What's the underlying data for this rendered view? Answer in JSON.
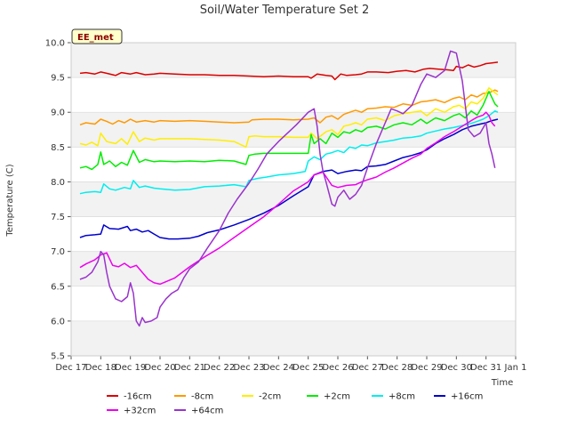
{
  "chart_data": {
    "type": "line",
    "title": "Soil/Water Temperature Set 2",
    "xlabel": "Time",
    "ylabel": "Temperature (C)",
    "badge": "EE_met",
    "x_ticks": [
      "Dec 17",
      "Dec 18",
      "Dec 19",
      "Dec 20",
      "Dec 21",
      "Dec 22",
      "Dec 23",
      "Dec 24",
      "Dec 25",
      "Dec 26",
      "Dec 27",
      "Dec 28",
      "Dec 29",
      "Dec 30",
      "Dec 31",
      "Jan 1"
    ],
    "xlim": [
      0,
      15
    ],
    "ylim": [
      5.5,
      10.0
    ],
    "y_ticks": [
      "5.5",
      "6.0",
      "6.5",
      "7.0",
      "7.5",
      "8.0",
      "8.5",
      "9.0",
      "9.5",
      "10.0"
    ],
    "y_tick_values": [
      5.5,
      6.0,
      6.5,
      7.0,
      7.5,
      8.0,
      8.5,
      9.0,
      9.5,
      10.0
    ],
    "band_color": "#f2f2f2",
    "legend_position": "bottom",
    "series": [
      {
        "name": "-16cm",
        "color": "#dd0000",
        "x": [
          0.3,
          0.5,
          0.8,
          1.0,
          1.2,
          1.5,
          1.7,
          2.0,
          2.2,
          2.5,
          2.8,
          3.0,
          3.5,
          4.0,
          4.5,
          5.0,
          5.5,
          6.0,
          6.5,
          7.0,
          7.5,
          8.0,
          8.1,
          8.3,
          8.6,
          8.8,
          8.9,
          9.1,
          9.3,
          9.6,
          9.8,
          10.0,
          10.3,
          10.7,
          11.0,
          11.3,
          11.6,
          11.9,
          12.1,
          12.4,
          12.7,
          12.9,
          13.0,
          13.2,
          13.4,
          13.6,
          13.8,
          14.0,
          14.2,
          14.4
        ],
        "y": [
          9.56,
          9.57,
          9.55,
          9.58,
          9.56,
          9.53,
          9.57,
          9.55,
          9.57,
          9.54,
          9.55,
          9.56,
          9.55,
          9.54,
          9.54,
          9.53,
          9.53,
          9.52,
          9.51,
          9.52,
          9.51,
          9.51,
          9.49,
          9.55,
          9.53,
          9.52,
          9.47,
          9.55,
          9.53,
          9.54,
          9.55,
          9.58,
          9.58,
          9.57,
          9.59,
          9.6,
          9.58,
          9.62,
          9.63,
          9.62,
          9.61,
          9.6,
          9.66,
          9.64,
          9.68,
          9.65,
          9.67,
          9.7,
          9.71,
          9.72
        ]
      },
      {
        "name": "-8cm",
        "color": "#ff9900",
        "x": [
          0.3,
          0.5,
          0.8,
          1.0,
          1.2,
          1.4,
          1.6,
          1.8,
          2.0,
          2.2,
          2.5,
          2.8,
          3.0,
          3.5,
          4.0,
          4.5,
          5.0,
          5.5,
          6.0,
          6.1,
          6.5,
          7.0,
          7.5,
          8.0,
          8.2,
          8.4,
          8.6,
          8.8,
          9.0,
          9.2,
          9.4,
          9.6,
          9.8,
          10.0,
          10.3,
          10.6,
          10.9,
          11.2,
          11.5,
          11.8,
          12.0,
          12.3,
          12.6,
          12.9,
          13.1,
          13.3,
          13.5,
          13.7,
          13.9,
          14.1,
          14.3,
          14.4
        ],
        "y": [
          8.82,
          8.85,
          8.83,
          8.9,
          8.87,
          8.83,
          8.88,
          8.85,
          8.9,
          8.86,
          8.88,
          8.86,
          8.88,
          8.87,
          8.88,
          8.87,
          8.86,
          8.85,
          8.86,
          8.89,
          8.9,
          8.9,
          8.89,
          8.9,
          8.92,
          8.85,
          8.93,
          8.95,
          8.9,
          8.97,
          9.0,
          9.03,
          9.0,
          9.05,
          9.06,
          9.08,
          9.07,
          9.12,
          9.1,
          9.15,
          9.16,
          9.18,
          9.14,
          9.2,
          9.22,
          9.18,
          9.25,
          9.22,
          9.27,
          9.28,
          9.32,
          9.3
        ]
      },
      {
        "name": "-2cm",
        "color": "#ffee00",
        "x": [
          0.3,
          0.5,
          0.7,
          0.9,
          1.0,
          1.2,
          1.5,
          1.7,
          1.9,
          2.1,
          2.3,
          2.5,
          2.8,
          3.0,
          3.5,
          4.0,
          4.5,
          5.0,
          5.5,
          5.9,
          6.0,
          6.2,
          6.5,
          7.0,
          7.5,
          8.0,
          8.1,
          8.3,
          8.6,
          8.8,
          9.0,
          9.2,
          9.4,
          9.6,
          9.8,
          10.0,
          10.3,
          10.6,
          10.9,
          11.2,
          11.5,
          11.8,
          12.0,
          12.3,
          12.6,
          12.9,
          13.1,
          13.3,
          13.5,
          13.7,
          13.9,
          14.1,
          14.3,
          14.4
        ],
        "y": [
          8.55,
          8.53,
          8.57,
          8.52,
          8.7,
          8.58,
          8.55,
          8.62,
          8.54,
          8.72,
          8.58,
          8.63,
          8.6,
          8.62,
          8.62,
          8.62,
          8.61,
          8.6,
          8.58,
          8.5,
          8.65,
          8.66,
          8.65,
          8.65,
          8.64,
          8.64,
          8.7,
          8.62,
          8.72,
          8.75,
          8.68,
          8.8,
          8.82,
          8.85,
          8.82,
          8.9,
          8.92,
          8.88,
          8.95,
          8.98,
          9.0,
          9.02,
          8.95,
          9.05,
          9.0,
          9.08,
          9.1,
          9.05,
          9.15,
          9.12,
          9.2,
          9.35,
          9.28,
          9.25
        ]
      },
      {
        "name": "+2cm",
        "color": "#00ee00",
        "x": [
          0.3,
          0.5,
          0.7,
          0.9,
          1.0,
          1.1,
          1.3,
          1.5,
          1.7,
          1.9,
          2.1,
          2.3,
          2.5,
          2.8,
          3.0,
          3.5,
          4.0,
          4.5,
          5.0,
          5.5,
          5.9,
          6.0,
          6.2,
          6.5,
          7.0,
          7.5,
          8.0,
          8.1,
          8.2,
          8.4,
          8.6,
          8.8,
          9.0,
          9.2,
          9.4,
          9.6,
          9.8,
          10.0,
          10.3,
          10.6,
          10.9,
          11.2,
          11.5,
          11.8,
          12.0,
          12.3,
          12.6,
          12.9,
          13.1,
          13.3,
          13.5,
          13.7,
          13.9,
          14.1,
          14.3,
          14.4
        ],
        "y": [
          8.2,
          8.22,
          8.18,
          8.25,
          8.43,
          8.25,
          8.3,
          8.22,
          8.28,
          8.24,
          8.45,
          8.28,
          8.32,
          8.29,
          8.3,
          8.29,
          8.3,
          8.29,
          8.31,
          8.3,
          8.25,
          8.38,
          8.4,
          8.41,
          8.41,
          8.41,
          8.41,
          8.68,
          8.55,
          8.62,
          8.55,
          8.7,
          8.64,
          8.72,
          8.7,
          8.75,
          8.72,
          8.78,
          8.8,
          8.76,
          8.82,
          8.85,
          8.82,
          8.9,
          8.84,
          8.92,
          8.88,
          8.95,
          8.98,
          8.92,
          9.02,
          8.96,
          9.1,
          9.3,
          9.12,
          9.08
        ]
      },
      {
        "name": "+8cm",
        "color": "#00eeee",
        "x": [
          0.3,
          0.5,
          0.8,
          1.0,
          1.1,
          1.3,
          1.5,
          1.8,
          2.0,
          2.1,
          2.3,
          2.5,
          2.8,
          3.0,
          3.5,
          4.0,
          4.5,
          5.0,
          5.5,
          5.9,
          6.0,
          6.3,
          6.6,
          7.0,
          7.5,
          7.9,
          8.0,
          8.2,
          8.4,
          8.6,
          8.8,
          9.0,
          9.2,
          9.4,
          9.6,
          9.8,
          10.0,
          10.3,
          10.6,
          10.9,
          11.2,
          11.5,
          11.8,
          12.0,
          12.3,
          12.6,
          12.9,
          13.1,
          13.3,
          13.5,
          13.7,
          13.9,
          14.1,
          14.3,
          14.4
        ],
        "y": [
          7.83,
          7.85,
          7.86,
          7.85,
          7.97,
          7.9,
          7.88,
          7.92,
          7.9,
          8.02,
          7.92,
          7.94,
          7.91,
          7.9,
          7.88,
          7.89,
          7.93,
          7.94,
          7.96,
          7.93,
          8.02,
          8.05,
          8.07,
          8.1,
          8.12,
          8.15,
          8.3,
          8.36,
          8.32,
          8.4,
          8.42,
          8.45,
          8.42,
          8.5,
          8.48,
          8.53,
          8.52,
          8.56,
          8.58,
          8.6,
          8.63,
          8.64,
          8.66,
          8.7,
          8.73,
          8.76,
          8.78,
          8.8,
          8.82,
          8.84,
          8.87,
          8.9,
          8.95,
          9.02,
          9.0
        ]
      },
      {
        "name": "+16cm",
        "color": "#0000cc",
        "x": [
          0.3,
          0.5,
          0.8,
          1.0,
          1.1,
          1.3,
          1.6,
          1.9,
          2.0,
          2.2,
          2.4,
          2.6,
          2.8,
          3.0,
          3.3,
          3.6,
          4.0,
          4.3,
          4.6,
          5.0,
          5.5,
          6.0,
          6.5,
          7.0,
          7.5,
          8.0,
          8.2,
          8.5,
          8.8,
          9.0,
          9.3,
          9.6,
          9.8,
          10.0,
          10.3,
          10.6,
          10.9,
          11.2,
          11.5,
          11.8,
          12.0,
          12.3,
          12.6,
          12.9,
          13.2,
          13.5,
          13.8,
          14.0,
          14.2,
          14.4
        ],
        "y": [
          7.2,
          7.23,
          7.24,
          7.25,
          7.38,
          7.33,
          7.32,
          7.36,
          7.3,
          7.32,
          7.28,
          7.3,
          7.25,
          7.2,
          7.18,
          7.18,
          7.19,
          7.22,
          7.27,
          7.31,
          7.38,
          7.46,
          7.55,
          7.66,
          7.8,
          7.93,
          8.1,
          8.15,
          8.17,
          8.12,
          8.15,
          8.17,
          8.16,
          8.22,
          8.23,
          8.25,
          8.3,
          8.35,
          8.38,
          8.42,
          8.46,
          8.55,
          8.62,
          8.68,
          8.75,
          8.8,
          8.83,
          8.85,
          8.88,
          8.9
        ]
      },
      {
        "name": "+32cm",
        "color": "#ee00ee",
        "x": [
          0.3,
          0.5,
          0.8,
          1.0,
          1.2,
          1.4,
          1.6,
          1.8,
          2.0,
          2.2,
          2.4,
          2.6,
          2.8,
          3.0,
          3.5,
          4.0,
          4.5,
          5.0,
          5.5,
          6.0,
          6.5,
          7.0,
          7.5,
          8.0,
          8.2,
          8.5,
          8.8,
          9.0,
          9.3,
          9.6,
          9.8,
          10.0,
          10.3,
          10.6,
          10.9,
          11.2,
          11.5,
          11.8,
          12.0,
          12.3,
          12.6,
          12.9,
          13.2,
          13.5,
          13.7,
          13.9,
          14.0,
          14.1,
          14.2,
          14.3
        ],
        "y": [
          6.77,
          6.82,
          6.88,
          6.95,
          6.98,
          6.8,
          6.78,
          6.83,
          6.77,
          6.8,
          6.7,
          6.6,
          6.55,
          6.53,
          6.62,
          6.78,
          6.92,
          7.05,
          7.2,
          7.35,
          7.5,
          7.68,
          7.87,
          8.0,
          8.1,
          8.14,
          7.95,
          7.92,
          7.95,
          7.96,
          8.0,
          8.03,
          8.07,
          8.14,
          8.2,
          8.27,
          8.34,
          8.4,
          8.48,
          8.56,
          8.65,
          8.72,
          8.8,
          8.88,
          8.93,
          8.96,
          9.0,
          8.95,
          8.85,
          8.8
        ]
      },
      {
        "name": "+64cm",
        "color": "#9933cc",
        "x": [
          0.3,
          0.5,
          0.7,
          0.9,
          1.0,
          1.1,
          1.2,
          1.3,
          1.5,
          1.7,
          1.9,
          2.0,
          2.1,
          2.2,
          2.3,
          2.4,
          2.5,
          2.7,
          2.9,
          3.0,
          3.2,
          3.4,
          3.6,
          3.8,
          4.0,
          4.3,
          4.6,
          5.0,
          5.3,
          5.6,
          6.0,
          6.3,
          6.6,
          7.0,
          7.3,
          7.6,
          8.0,
          8.2,
          8.3,
          8.4,
          8.5,
          8.6,
          8.8,
          8.9,
          9.0,
          9.2,
          9.4,
          9.6,
          9.8,
          10.0,
          10.3,
          10.6,
          10.8,
          11.0,
          11.2,
          11.5,
          11.8,
          12.0,
          12.3,
          12.6,
          12.8,
          13.0,
          13.2,
          13.4,
          13.6,
          13.8,
          14.0,
          14.1,
          14.2,
          14.3
        ],
        "y": [
          6.6,
          6.63,
          6.7,
          6.85,
          7.0,
          6.95,
          6.7,
          6.5,
          6.32,
          6.28,
          6.35,
          6.55,
          6.4,
          6.0,
          5.93,
          6.05,
          5.98,
          6.0,
          6.05,
          6.2,
          6.32,
          6.4,
          6.45,
          6.62,
          6.75,
          6.85,
          7.05,
          7.3,
          7.55,
          7.75,
          7.98,
          8.18,
          8.4,
          8.58,
          8.7,
          8.82,
          9.0,
          9.05,
          8.8,
          8.4,
          8.15,
          8.0,
          7.68,
          7.65,
          7.78,
          7.88,
          7.75,
          7.82,
          7.95,
          8.2,
          8.55,
          8.85,
          9.05,
          9.02,
          8.98,
          9.1,
          9.4,
          9.55,
          9.5,
          9.6,
          9.88,
          9.85,
          9.45,
          8.75,
          8.65,
          8.7,
          8.85,
          8.55,
          8.4,
          8.2
        ]
      }
    ]
  }
}
